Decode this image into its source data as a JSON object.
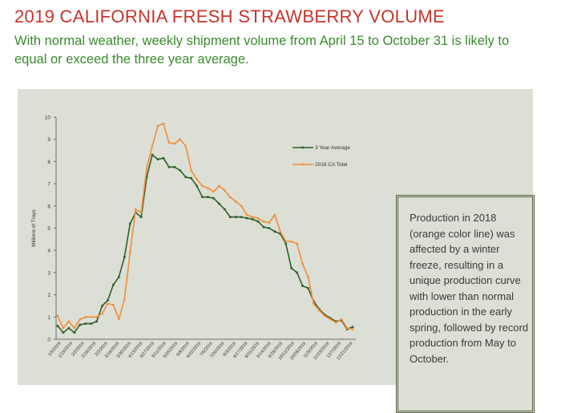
{
  "header": {
    "title": "2019 CALIFORNIA FRESH STRAWBERRY VOLUME",
    "subtitle": "With normal weather, weekly shipment volume from April 15 to October 31 is likely to equal or exceed the three year average."
  },
  "note": {
    "text": "Production in 2018 (orange color line) was affected by a winter freeze, resulting in a unique production curve with lower than normal production in the early spring, followed by record production from May to October."
  },
  "colors": {
    "panel_bg": "#dcdfd5",
    "series_3yr": "#2f5e2a",
    "series_2018": "#f28c38",
    "title": "#c8332a",
    "subtitle": "#3a8a2e"
  },
  "chart_data": {
    "type": "line",
    "title": "",
    "xlabel": "",
    "ylabel": "Millions of Trays",
    "ylim": [
      0,
      10
    ],
    "yticks": [
      "0",
      "1",
      "2",
      "3",
      "4",
      "5",
      "6",
      "7",
      "8",
      "9",
      "10"
    ],
    "xtick_labels": [
      "1/5/2019",
      "1/19/2019",
      "2/2/2019",
      "2/16/2019",
      "3/2/2019",
      "3/16/2019",
      "3/30/2019",
      "4/13/2019",
      "4/27/2019",
      "5/11/2019",
      "5/25/2019",
      "6/8/2019",
      "6/22/2019",
      "7/6/2019",
      "7/20/2019",
      "8/3/2019",
      "8/17/2019",
      "8/31/2019",
      "9/14/2019",
      "9/28/2019",
      "10/12/2019",
      "10/26/2019",
      "11/9/2019",
      "11/23/2019",
      "12/7/2019",
      "12/21/2019"
    ],
    "legend_position": "top-right",
    "series": [
      {
        "name": "3 Year Average",
        "values": [
          0.6,
          0.3,
          0.5,
          0.3,
          0.65,
          0.7,
          0.7,
          0.8,
          1.5,
          1.75,
          2.45,
          2.8,
          3.7,
          5.2,
          5.7,
          5.5,
          7.3,
          8.3,
          8.1,
          8.15,
          7.75,
          7.75,
          7.6,
          7.3,
          7.25,
          6.9,
          6.4,
          6.4,
          6.35,
          6.1,
          5.85,
          5.5,
          5.5,
          5.5,
          5.45,
          5.4,
          5.3,
          5.05,
          5.0,
          4.85,
          4.75,
          4.3,
          3.2,
          3.0,
          2.4,
          2.3,
          1.7,
          1.35,
          1.1,
          0.95,
          0.8,
          0.85,
          0.45,
          0.55
        ]
      },
      {
        "name": "2018 CA Total",
        "values": [
          1.05,
          0.5,
          0.8,
          0.5,
          0.9,
          1.0,
          1.0,
          1.0,
          1.15,
          1.6,
          1.55,
          0.9,
          1.8,
          3.9,
          5.85,
          5.7,
          7.7,
          8.7,
          9.6,
          9.7,
          8.85,
          8.8,
          9.0,
          8.7,
          7.6,
          7.2,
          6.9,
          6.8,
          6.65,
          6.9,
          6.7,
          6.4,
          6.2,
          6.0,
          5.6,
          5.5,
          5.45,
          5.3,
          5.25,
          5.6,
          4.85,
          4.4,
          4.4,
          4.3,
          3.4,
          2.8,
          1.6,
          1.3,
          1.05,
          0.9,
          0.75,
          0.9,
          0.5,
          0.45
        ]
      }
    ]
  }
}
